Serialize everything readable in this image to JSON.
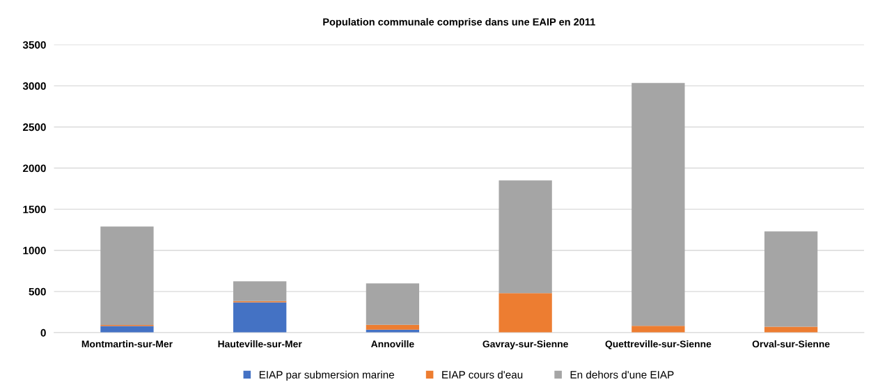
{
  "chart_data": {
    "type": "bar",
    "title": "Population communale comprise dans une EAIP en 2011",
    "stacked": true,
    "categories": [
      "Montmartin-sur-Mer",
      "Hauteville-sur-Mer",
      "Annoville",
      "Gavray-sur-Sienne",
      "Quettreville-sur-Sienne",
      "Orval-sur-Sienne"
    ],
    "series": [
      {
        "name": "EIAP par submersion marine",
        "color": "#4472c4",
        "values": [
          80,
          368,
          36,
          0,
          0,
          0
        ]
      },
      {
        "name": "EIAP cours d'eau",
        "color": "#ed7d31",
        "values": [
          12,
          15,
          58,
          480,
          81,
          71
        ]
      },
      {
        "name": "En dehors d'une EIAP",
        "color": "#a5a5a5",
        "values": [
          1198,
          240,
          505,
          1370,
          2954,
          1159
        ]
      }
    ],
    "ylim": [
      0,
      3500
    ],
    "yticks": [
      0,
      500,
      1000,
      1500,
      2000,
      2500,
      3000,
      3500
    ],
    "grid": "y",
    "legend": "bottom"
  }
}
